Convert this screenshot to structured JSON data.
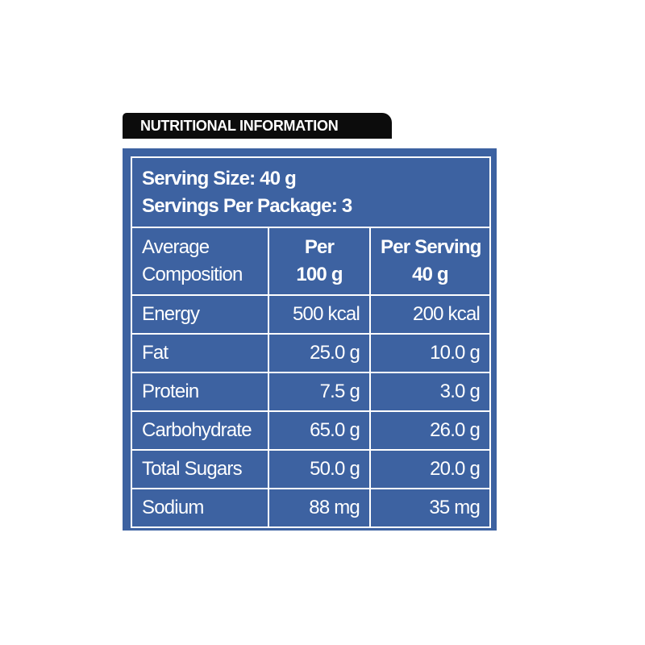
{
  "header": {
    "title": "NUTRITIONAL INFORMATION"
  },
  "serving": {
    "size": "Serving Size: 40 g",
    "per_package": "Servings Per Package: 3"
  },
  "columns": {
    "label_line1": "Average",
    "label_line2": "Composition",
    "per100_line1": "Per",
    "per100_line2": "100 g",
    "perserving_line1": "Per Serving",
    "perserving_line2": "40 g"
  },
  "rows": [
    {
      "name": "Energy",
      "per_100g": "500 kcal",
      "per_serving": "200 kcal"
    },
    {
      "name": "Fat",
      "per_100g": "25.0 g",
      "per_serving": "10.0 g"
    },
    {
      "name": "Protein",
      "per_100g": "7.5 g",
      "per_serving": "3.0 g"
    },
    {
      "name": "Carbohydrate",
      "per_100g": "65.0 g",
      "per_serving": "26.0 g"
    },
    {
      "name": "Total Sugars",
      "per_100g": "50.0 g",
      "per_serving": "20.0 g"
    },
    {
      "name": "Sodium",
      "per_100g": "88 mg",
      "per_serving": "35 mg"
    }
  ],
  "colors": {
    "panel": "#3d62a1",
    "header": "#0c0c0c",
    "text": "#ffffff"
  }
}
